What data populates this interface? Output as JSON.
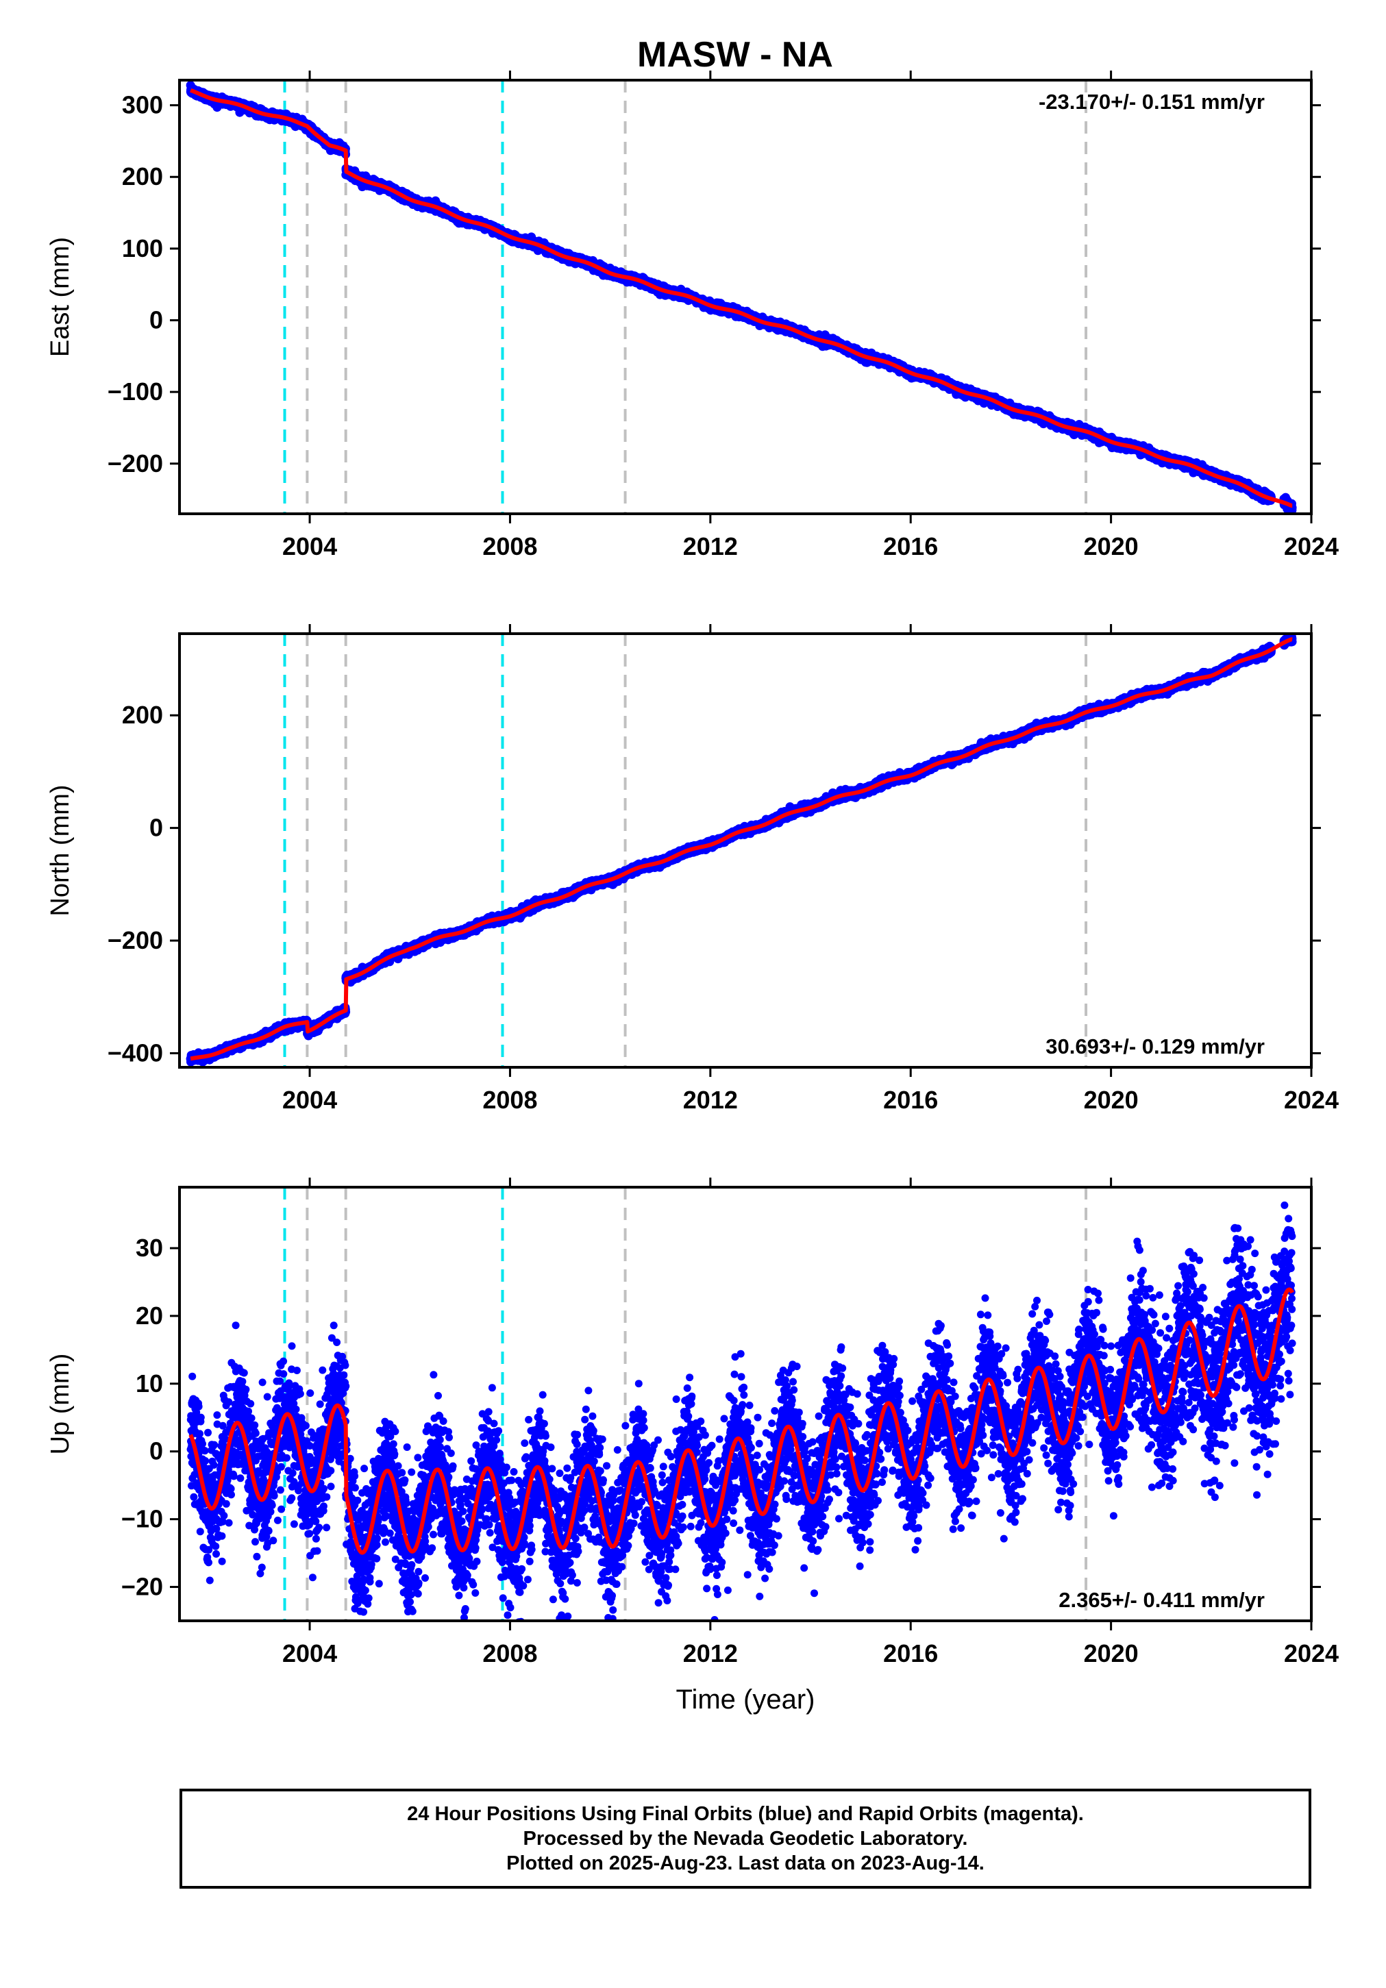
{
  "figure": {
    "title": "MASW - NA",
    "xlabel": "Time (year)",
    "x_ticks": [
      2004,
      2008,
      2012,
      2016,
      2020,
      2024
    ],
    "xlim": [
      2001.4,
      2024.0
    ]
  },
  "colors": {
    "final_orbits": "#0000ff",
    "model_fit": "#ff0000",
    "cyan_marker": "#00e5ee",
    "gray_marker": "#c0c0c0"
  },
  "caption": {
    "line1": "24 Hour Positions Using Final Orbits (blue) and Rapid Orbits (magenta).",
    "line2": "Processed by the Nevada Geodetic Laboratory.",
    "line3": "Plotted on 2025-Aug-23. Last data on 2023-Aug-14."
  },
  "chart_data": [
    {
      "type": "scatter",
      "component": "east",
      "ylabel": "East (mm)",
      "ylim": [
        -270,
        335
      ],
      "y_ticks": [
        300,
        200,
        100,
        0,
        -100,
        -200
      ],
      "rate_label": "-23.170+/- 0.151 mm/yr",
      "rate_position": "top-right",
      "cyan_lines": [
        2003.5,
        2007.85
      ],
      "gray_lines": [
        2003.95,
        2004.72,
        2010.3,
        2019.5
      ],
      "segments": [
        {
          "x": [
            2001.6,
            2002.5,
            2003.5,
            2003.95
          ],
          "y": [
            320,
            301,
            281,
            272
          ]
        },
        {
          "x": [
            2003.95,
            2004.4,
            2004.72
          ],
          "y": [
            272,
            243,
            236
          ]
        },
        {
          "x": [
            2004.72,
            2006.0,
            2008.0,
            2010.0,
            2012.0,
            2014.0,
            2016.0,
            2018.0,
            2020.0,
            2022.0,
            2023.6
          ],
          "y": [
            207,
            170,
            118,
            67,
            22,
            -22,
            -72,
            -122,
            -168,
            -213,
            -260
          ]
        }
      ],
      "noise_mm": 2.5,
      "annual_amplitude_mm": 1.5
    },
    {
      "type": "scatter",
      "component": "north",
      "ylabel": "North (mm)",
      "ylim": [
        -425,
        345
      ],
      "y_ticks": [
        200,
        0,
        -200,
        -400
      ],
      "rate_label": "30.693+/- 0.129 mm/yr",
      "rate_position": "bottom-right",
      "cyan_lines": [
        2003.5,
        2007.85
      ],
      "gray_lines": [
        2003.95,
        2004.72,
        2010.3,
        2019.5
      ],
      "segments": [
        {
          "x": [
            2001.6,
            2002.5,
            2003.5,
            2003.95
          ],
          "y": [
            -412,
            -390,
            -355,
            -343
          ]
        },
        {
          "x": [
            2003.95,
            2004.72
          ],
          "y": [
            -360,
            -325
          ]
        },
        {
          "x": [
            2004.72,
            2006.0,
            2008.0,
            2010.0,
            2012.0,
            2014.0,
            2016.0,
            2018.0,
            2020.0,
            2022.0,
            2023.6
          ],
          "y": [
            -270,
            -213,
            -155,
            -90,
            -28,
            38,
            95,
            160,
            218,
            272,
            333
          ]
        }
      ],
      "noise_mm": 3,
      "annual_amplitude_mm": 2
    },
    {
      "type": "scatter",
      "component": "up",
      "ylabel": "Up (mm)",
      "ylim": [
        -25,
        39
      ],
      "y_ticks": [
        30,
        20,
        10,
        0,
        -10,
        -20
      ],
      "rate_label": "2.365+/- 0.411 mm/yr",
      "rate_position": "bottom-right",
      "cyan_lines": [
        2003.5,
        2007.85
      ],
      "gray_lines": [
        2003.95,
        2004.72,
        2010.3,
        2019.5
      ],
      "trend": {
        "x": [
          2001.6,
          2004.72,
          2004.73,
          2010.3,
          2010.31,
          2019.5,
          2023.6
        ],
        "y": [
          -3,
          1,
          -9,
          -8,
          -8,
          8,
          18
        ]
      },
      "annual_amplitude_mm": 6,
      "noise_mm": 4.5
    }
  ]
}
